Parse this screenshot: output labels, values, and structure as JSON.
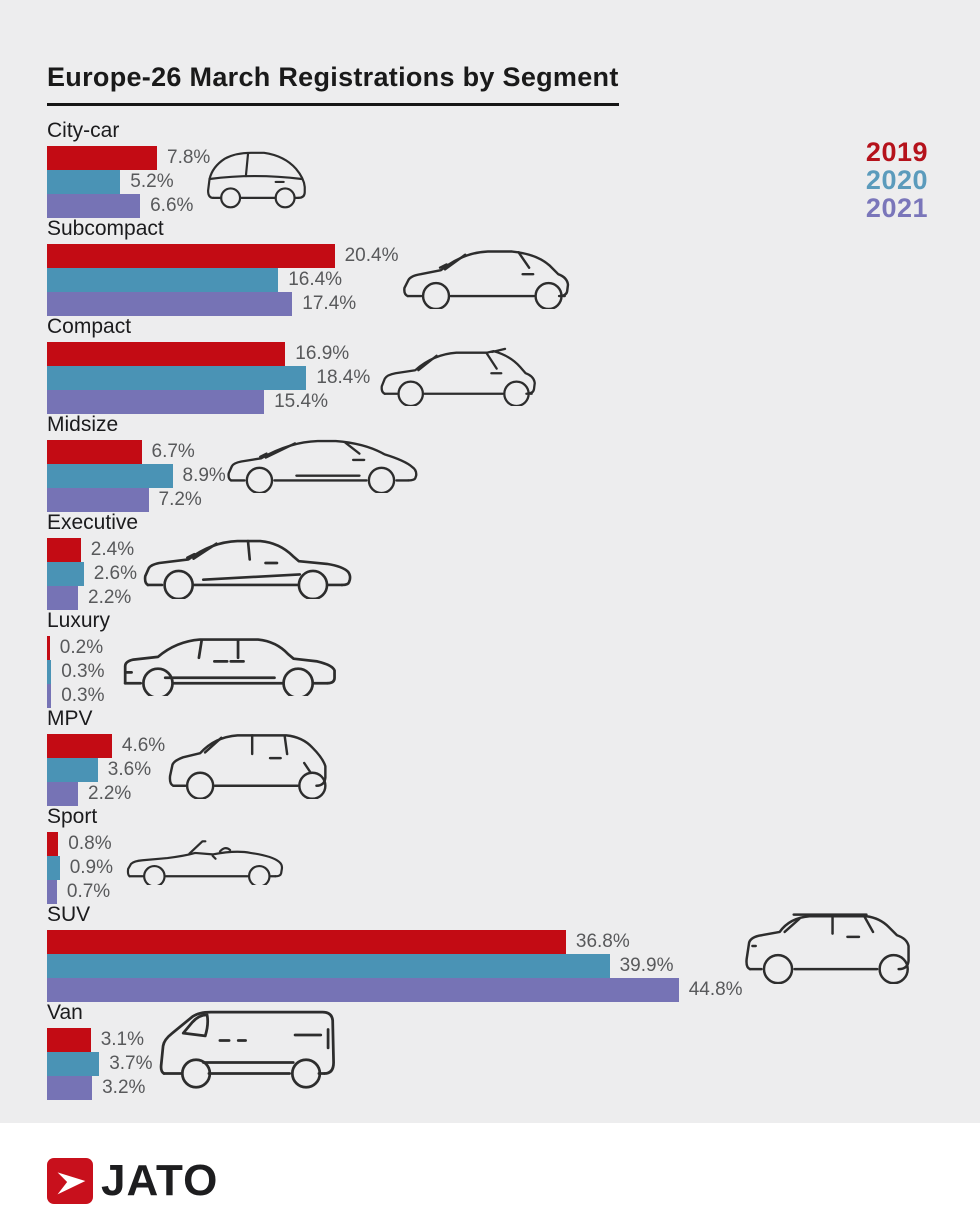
{
  "title": "Europe-26 March Registrations by Segment",
  "legend": [
    {
      "label": "2019",
      "color": "#b5121b"
    },
    {
      "label": "2020",
      "color": "#5b9bbc"
    },
    {
      "label": "2021",
      "color": "#7a76ba"
    }
  ],
  "icons": [
    "city-car-icon",
    "subcompact-car-icon",
    "compact-car-icon",
    "midsize-car-icon",
    "executive-car-icon",
    "luxury-car-icon",
    "mpv-car-icon",
    "sport-car-icon",
    "suv-car-icon",
    "van-icon"
  ],
  "logo": {
    "text": "JATO",
    "mark": "jato-arrow-icon",
    "mark_color": "#c8101c"
  },
  "colors": {
    "background": "#ededee",
    "footer": "#ffffff",
    "value_text": "#58595b",
    "car_outline": "#2d2d2d"
  },
  "chart_data": {
    "type": "bar",
    "orientation": "horizontal",
    "title": "Europe-26 March Registrations by Segment",
    "categories": [
      "City-car",
      "Subcompact",
      "Compact",
      "Midsize",
      "Executive",
      "Luxury",
      "MPV",
      "Sport",
      "SUV",
      "Van"
    ],
    "series": [
      {
        "name": "2019",
        "color": "#c30b14",
        "values": [
          7.8,
          20.4,
          16.9,
          6.7,
          2.4,
          0.2,
          4.6,
          0.8,
          36.8,
          3.1
        ]
      },
      {
        "name": "2020",
        "color": "#4a93b5",
        "values": [
          5.2,
          16.4,
          18.4,
          8.9,
          2.6,
          0.3,
          3.6,
          0.9,
          39.9,
          3.7
        ]
      },
      {
        "name": "2021",
        "color": "#7673b5",
        "values": [
          6.6,
          17.4,
          15.4,
          7.2,
          2.2,
          0.3,
          2.2,
          0.7,
          44.8,
          3.2
        ]
      }
    ],
    "value_suffix": "%",
    "value_labels": true,
    "xlim": [
      0,
      46
    ],
    "grid": false,
    "legend_position": "top-right"
  }
}
